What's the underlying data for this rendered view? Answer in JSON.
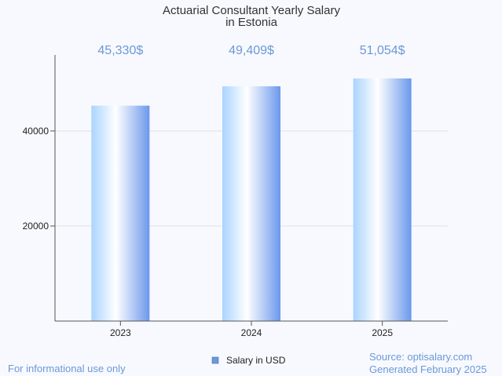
{
  "chart_data": {
    "type": "bar",
    "title_lines": [
      "Actuarial Consultant Yearly Salary",
      "in Estonia"
    ],
    "categories": [
      "2023",
      "2024",
      "2025"
    ],
    "series": [
      {
        "name": "Salary in USD",
        "values": [
          45330,
          49409,
          51054
        ]
      }
    ],
    "value_labels": [
      "45,330$",
      "49,409$",
      "51,054$"
    ],
    "y_ticks": [
      20000,
      40000
    ],
    "ylim": [
      0,
      56000
    ],
    "grid": true,
    "legend_position": "bottom-center"
  },
  "footer": {
    "disclaimer": "For informational use only",
    "source": "Source: optisalary.com",
    "generated": "Generated February 2025"
  },
  "colors": {
    "accent": "#6a99d8",
    "bar_dark": "#6b98ec",
    "bar_light": "#ffffff",
    "bar_edge": "#a9d4ff",
    "axis": "#555555",
    "grid": "#e2e2e2",
    "legend_swatch": "#6a99d8"
  }
}
